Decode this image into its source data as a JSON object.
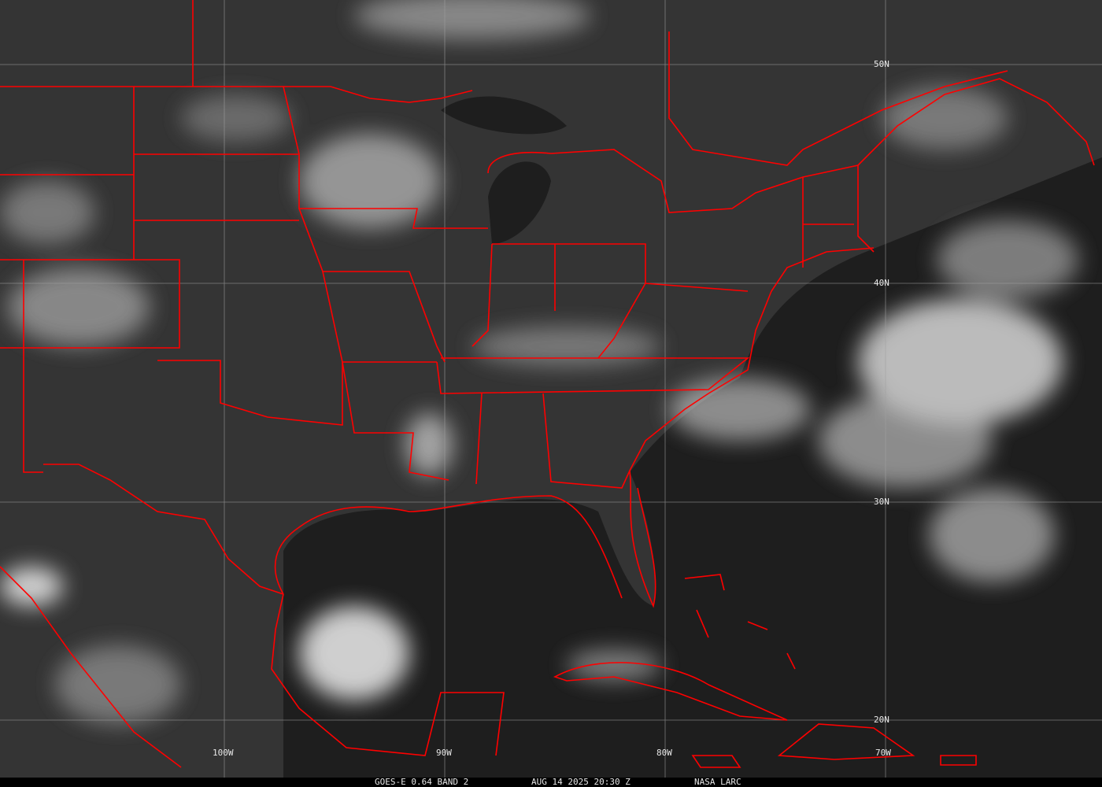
{
  "satellite_label": "GOES-E 0.64 BAND 2",
  "timestamp": "AUG 14 2025 20:30 Z",
  "credit": "NASA LARC",
  "grid": {
    "latitudes": [
      "50N",
      "40N",
      "30N",
      "20N"
    ],
    "longitudes": [
      "100W",
      "90W",
      "80W",
      "70W"
    ]
  },
  "colors": {
    "borders": "#ff0000",
    "grid": "#a0a0a0",
    "background": "#2e2e2e",
    "ocean": "#1c1c1c"
  }
}
